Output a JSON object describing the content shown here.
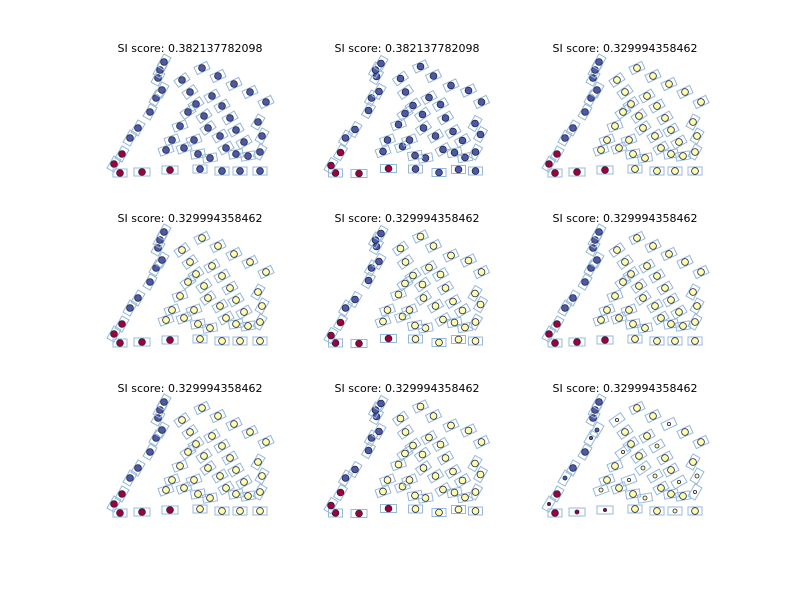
{
  "chart_data": {
    "type": "scatter",
    "panels": [
      {
        "title": "SI score: 0.382137782098",
        "variant": "purple"
      },
      {
        "title": "SI score: 0.382137782098",
        "variant": "purple-alt"
      },
      {
        "title": "SI score: 0.329994358462",
        "variant": "yellow"
      },
      {
        "title": "SI score: 0.329994358462",
        "variant": "yellow"
      },
      {
        "title": "SI score: 0.329994358462",
        "variant": "yellow-alt"
      },
      {
        "title": "SI score: 0.329994358462",
        "variant": "yellow"
      },
      {
        "title": "SI score: 0.329994358462",
        "variant": "yellow"
      },
      {
        "title": "SI score: 0.329994358462",
        "variant": "yellow-alt"
      },
      {
        "title": "SI score: 0.329994358462",
        "variant": "yellow-sparse"
      }
    ],
    "colors": {
      "cluster_red": "#a0003a",
      "cluster_purple": "#4d59a6",
      "cluster_yellow": "#fdfdaa",
      "box_stroke": "#94b8dc"
    },
    "axes_visible": false,
    "grid": false,
    "legend": "none"
  }
}
